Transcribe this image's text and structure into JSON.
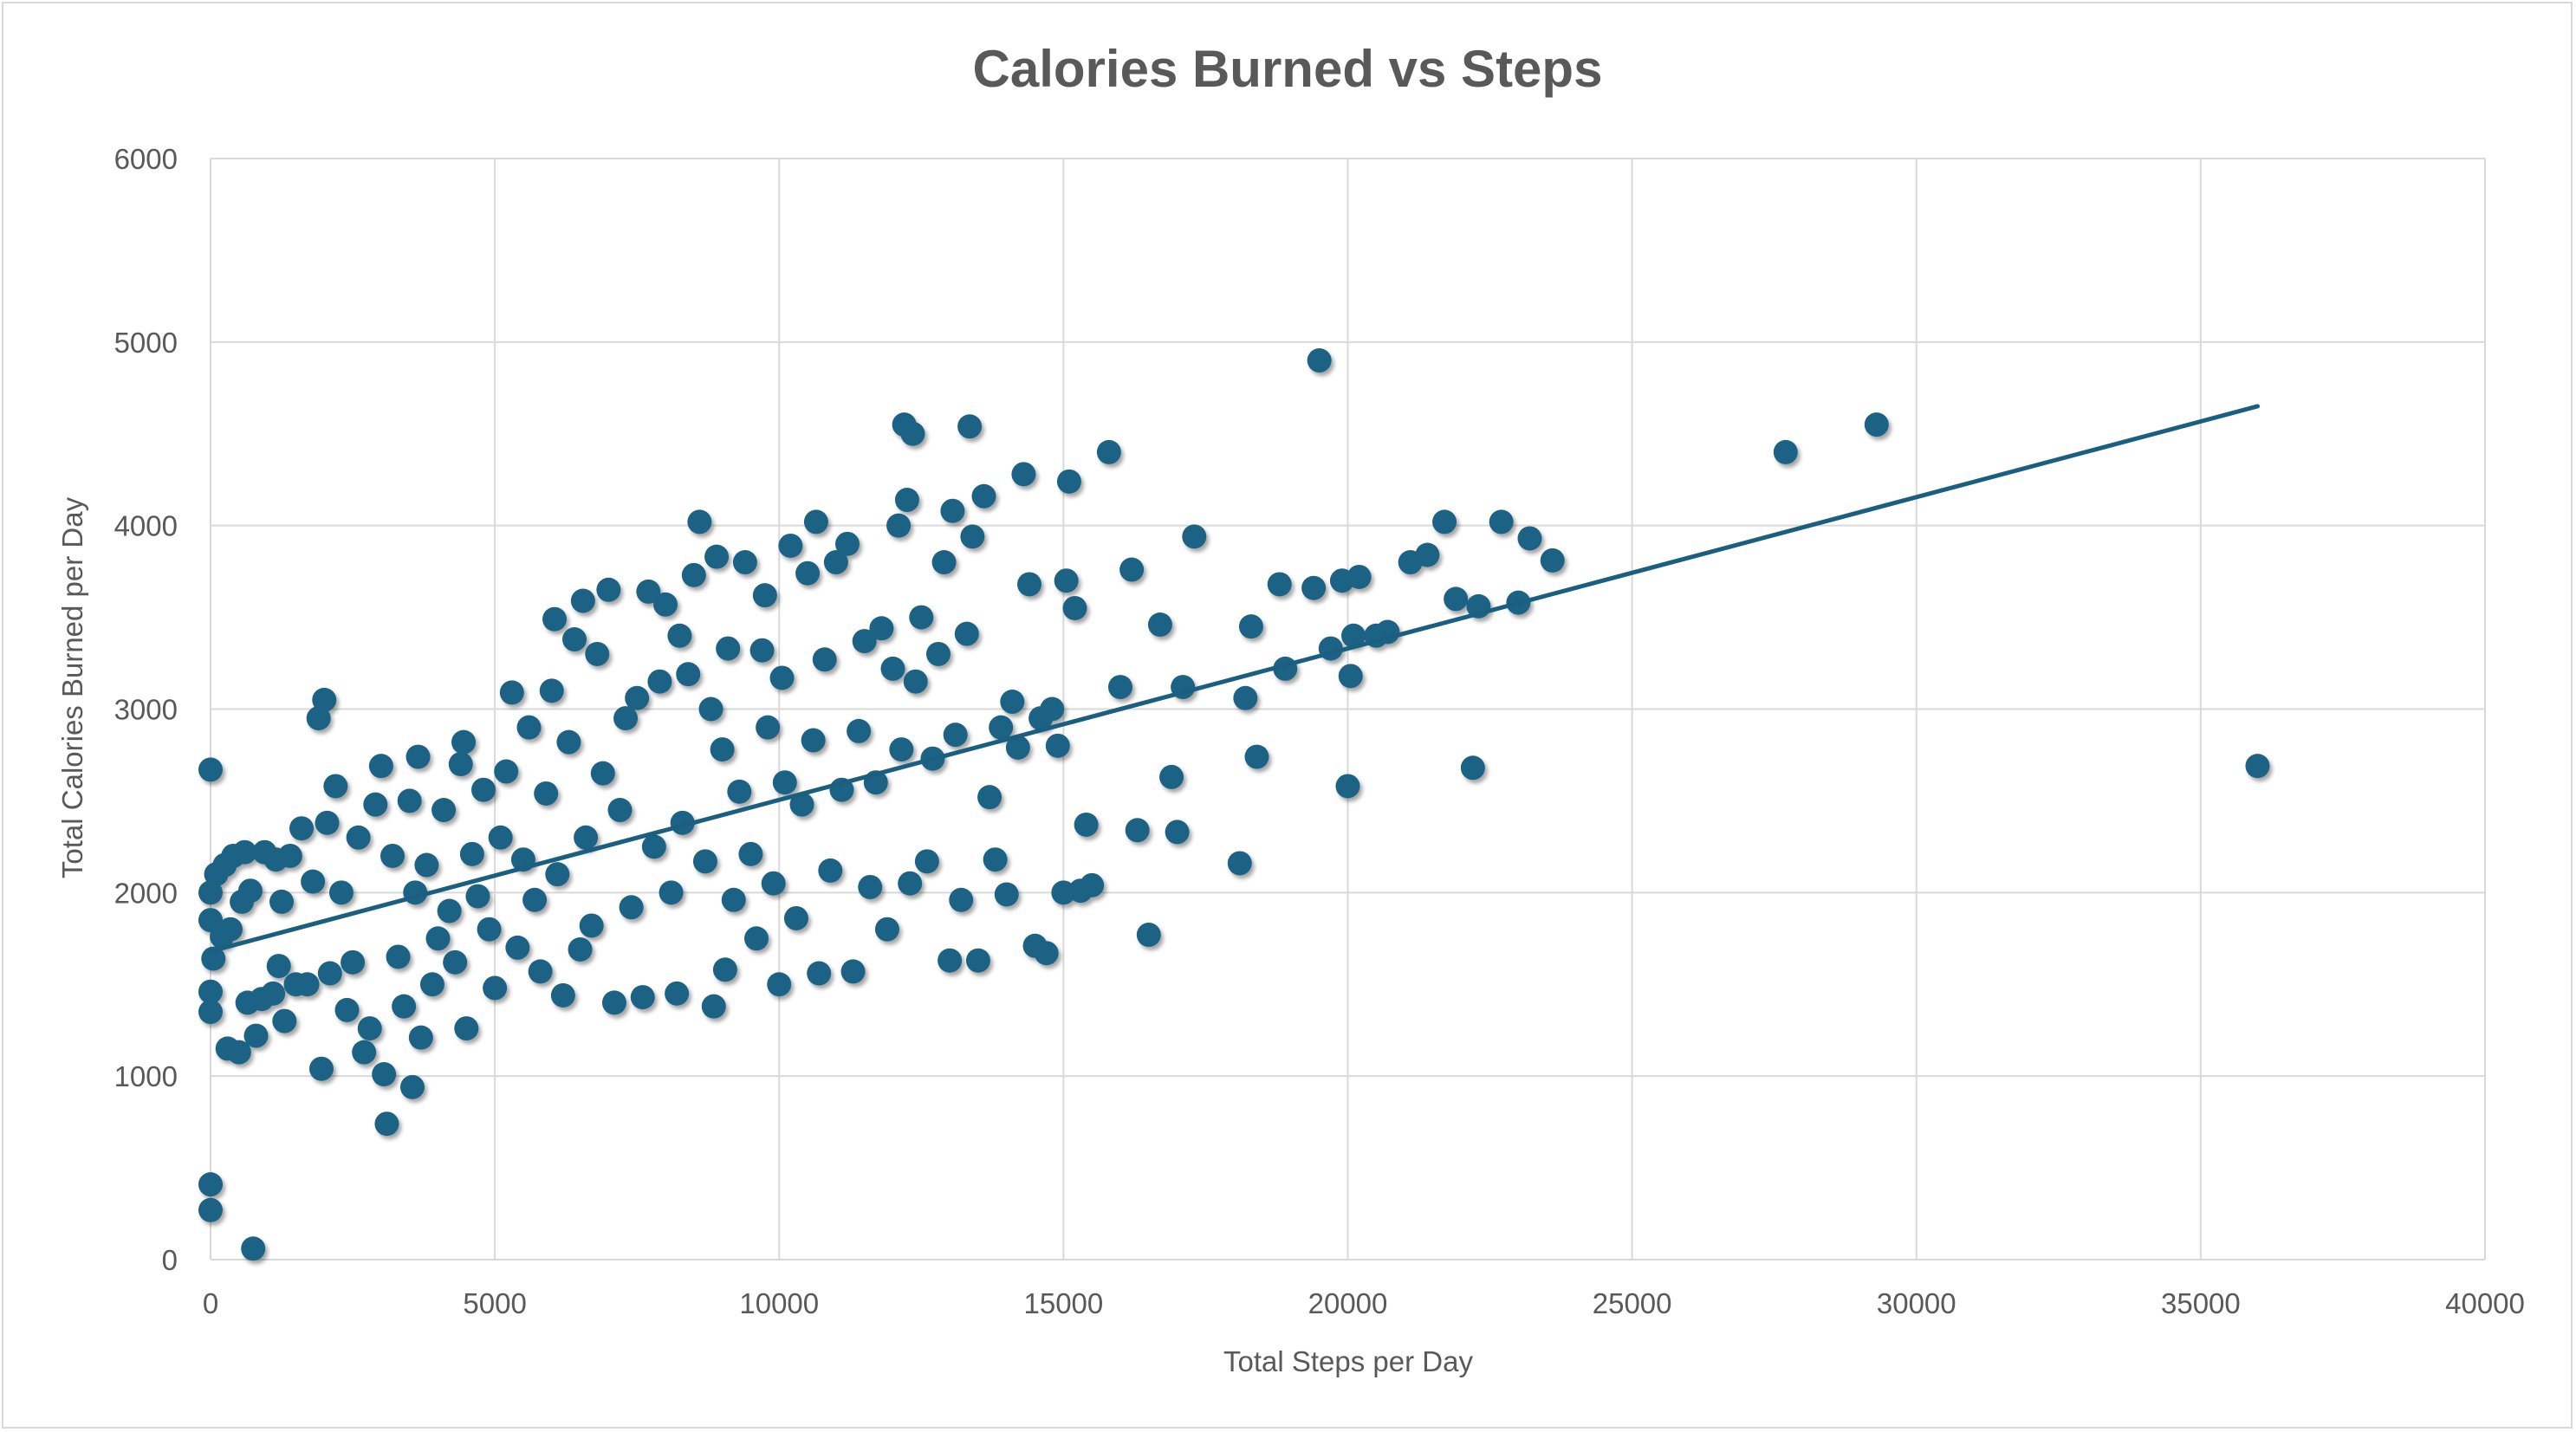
{
  "chart_data": {
    "type": "scatter",
    "title": "Calories Burned vs Steps",
    "xlabel": "Total Steps per Day",
    "ylabel": "Total Calories Burned per Day",
    "xlim": [
      0,
      40000
    ],
    "ylim": [
      0,
      6000
    ],
    "x_ticks": [
      0,
      5000,
      10000,
      15000,
      20000,
      25000,
      30000,
      35000,
      40000
    ],
    "y_ticks": [
      0,
      1000,
      2000,
      3000,
      4000,
      5000,
      6000
    ],
    "x_tick_labels": [
      "0",
      "5000",
      "10000",
      "15000",
      "20000",
      "25000",
      "30000",
      "35000",
      "40000"
    ],
    "y_tick_labels": [
      "0",
      "1000",
      "2000",
      "3000",
      "4000",
      "5000",
      "6000"
    ],
    "grid": true,
    "legend": "none",
    "colors": {
      "marker": "#1f6285",
      "trendline": "#1a5f80",
      "grid": "#d9d9d9",
      "text": "#595959"
    },
    "trendline": {
      "type": "linear",
      "x": [
        0,
        36000
      ],
      "y": [
        1680,
        4650
      ]
    },
    "series": [
      {
        "name": "Calories",
        "points": [
          [
            0,
            2670
          ],
          [
            0,
            410
          ],
          [
            0,
            270
          ],
          [
            0,
            1350
          ],
          [
            0,
            1460
          ],
          [
            0,
            1850
          ],
          [
            0,
            2000
          ],
          [
            50,
            1640
          ],
          [
            100,
            2100
          ],
          [
            200,
            1760
          ],
          [
            250,
            2150
          ],
          [
            300,
            1150
          ],
          [
            350,
            1800
          ],
          [
            400,
            2200
          ],
          [
            500,
            1130
          ],
          [
            550,
            1950
          ],
          [
            600,
            2220
          ],
          [
            650,
            1400
          ],
          [
            700,
            2010
          ],
          [
            750,
            60
          ],
          [
            800,
            1220
          ],
          [
            900,
            1420
          ],
          [
            950,
            2220
          ],
          [
            1100,
            1450
          ],
          [
            1150,
            2180
          ],
          [
            1200,
            1600
          ],
          [
            1250,
            1950
          ],
          [
            1300,
            1300
          ],
          [
            1400,
            2200
          ],
          [
            1500,
            1500
          ],
          [
            1600,
            2350
          ],
          [
            1700,
            1500
          ],
          [
            1800,
            2060
          ],
          [
            1900,
            2950
          ],
          [
            1950,
            1040
          ],
          [
            2000,
            3050
          ],
          [
            2050,
            2380
          ],
          [
            2100,
            1560
          ],
          [
            2200,
            2580
          ],
          [
            2300,
            2000
          ],
          [
            2400,
            1360
          ],
          [
            2500,
            1620
          ],
          [
            2600,
            2300
          ],
          [
            2700,
            1130
          ],
          [
            2800,
            1260
          ],
          [
            2900,
            2480
          ],
          [
            3000,
            2690
          ],
          [
            3050,
            1010
          ],
          [
            3100,
            740
          ],
          [
            3200,
            2200
          ],
          [
            3300,
            1650
          ],
          [
            3400,
            1380
          ],
          [
            3500,
            2500
          ],
          [
            3550,
            940
          ],
          [
            3600,
            2000
          ],
          [
            3650,
            2740
          ],
          [
            3700,
            1210
          ],
          [
            3800,
            2150
          ],
          [
            3900,
            1500
          ],
          [
            4000,
            1750
          ],
          [
            4100,
            2450
          ],
          [
            4200,
            1900
          ],
          [
            4300,
            1620
          ],
          [
            4400,
            2700
          ],
          [
            4450,
            2820
          ],
          [
            4500,
            1260
          ],
          [
            4600,
            2210
          ],
          [
            4700,
            1980
          ],
          [
            4800,
            2560
          ],
          [
            4900,
            1800
          ],
          [
            5000,
            1480
          ],
          [
            5100,
            2300
          ],
          [
            5200,
            2660
          ],
          [
            5300,
            3090
          ],
          [
            5400,
            1700
          ],
          [
            5500,
            2180
          ],
          [
            5600,
            2900
          ],
          [
            5700,
            1960
          ],
          [
            5800,
            1570
          ],
          [
            5900,
            2540
          ],
          [
            6000,
            3100
          ],
          [
            6050,
            3490
          ],
          [
            6100,
            2100
          ],
          [
            6200,
            1440
          ],
          [
            6300,
            2820
          ],
          [
            6400,
            3380
          ],
          [
            6500,
            1690
          ],
          [
            6550,
            3590
          ],
          [
            6600,
            2300
          ],
          [
            6700,
            1820
          ],
          [
            6800,
            3300
          ],
          [
            6900,
            2650
          ],
          [
            7000,
            3650
          ],
          [
            7100,
            1400
          ],
          [
            7200,
            2450
          ],
          [
            7300,
            2950
          ],
          [
            7400,
            1920
          ],
          [
            7500,
            3060
          ],
          [
            7600,
            1430
          ],
          [
            7700,
            3640
          ],
          [
            7800,
            2250
          ],
          [
            7900,
            3150
          ],
          [
            8000,
            3570
          ],
          [
            8100,
            2000
          ],
          [
            8200,
            1450
          ],
          [
            8250,
            3400
          ],
          [
            8300,
            2380
          ],
          [
            8400,
            3190
          ],
          [
            8500,
            3730
          ],
          [
            8600,
            4020
          ],
          [
            8700,
            2170
          ],
          [
            8800,
            3000
          ],
          [
            8850,
            1380
          ],
          [
            8900,
            3830
          ],
          [
            9000,
            2780
          ],
          [
            9050,
            1580
          ],
          [
            9100,
            3330
          ],
          [
            9200,
            1960
          ],
          [
            9300,
            2550
          ],
          [
            9400,
            3800
          ],
          [
            9500,
            2210
          ],
          [
            9600,
            1750
          ],
          [
            9700,
            3320
          ],
          [
            9750,
            3620
          ],
          [
            9800,
            2900
          ],
          [
            9900,
            2050
          ],
          [
            10000,
            1500
          ],
          [
            10050,
            3170
          ],
          [
            10100,
            2600
          ],
          [
            10200,
            3890
          ],
          [
            10300,
            1860
          ],
          [
            10400,
            2480
          ],
          [
            10500,
            3740
          ],
          [
            10600,
            2830
          ],
          [
            10650,
            4020
          ],
          [
            10700,
            1560
          ],
          [
            10800,
            3270
          ],
          [
            10900,
            2120
          ],
          [
            11000,
            3800
          ],
          [
            11100,
            2560
          ],
          [
            11200,
            3900
          ],
          [
            11300,
            1570
          ],
          [
            11400,
            2880
          ],
          [
            11500,
            3370
          ],
          [
            11600,
            2030
          ],
          [
            11700,
            2600
          ],
          [
            11800,
            3440
          ],
          [
            11900,
            1800
          ],
          [
            12000,
            3220
          ],
          [
            12100,
            4000
          ],
          [
            12150,
            2780
          ],
          [
            12200,
            4550
          ],
          [
            12250,
            4140
          ],
          [
            12300,
            2050
          ],
          [
            12350,
            4500
          ],
          [
            12400,
            3150
          ],
          [
            12500,
            3500
          ],
          [
            12600,
            2170
          ],
          [
            12700,
            2730
          ],
          [
            12800,
            3300
          ],
          [
            12900,
            3800
          ],
          [
            13000,
            1630
          ],
          [
            13050,
            4080
          ],
          [
            13100,
            2860
          ],
          [
            13200,
            1960
          ],
          [
            13300,
            3410
          ],
          [
            13350,
            4540
          ],
          [
            13400,
            3940
          ],
          [
            13500,
            1630
          ],
          [
            13600,
            4160
          ],
          [
            13700,
            2520
          ],
          [
            13800,
            2180
          ],
          [
            13900,
            2900
          ],
          [
            14000,
            1990
          ],
          [
            14100,
            3040
          ],
          [
            14200,
            2790
          ],
          [
            14300,
            4280
          ],
          [
            14400,
            3680
          ],
          [
            14500,
            1710
          ],
          [
            14600,
            2950
          ],
          [
            14700,
            1670
          ],
          [
            14800,
            3000
          ],
          [
            14900,
            2800
          ],
          [
            15000,
            2000
          ],
          [
            15050,
            3700
          ],
          [
            15100,
            4240
          ],
          [
            15200,
            3550
          ],
          [
            15300,
            2010
          ],
          [
            15400,
            2370
          ],
          [
            15500,
            2040
          ],
          [
            15800,
            4400
          ],
          [
            16000,
            3120
          ],
          [
            16200,
            3760
          ],
          [
            16300,
            2340
          ],
          [
            16500,
            1770
          ],
          [
            16700,
            3460
          ],
          [
            16900,
            2630
          ],
          [
            17000,
            2330
          ],
          [
            17100,
            3120
          ],
          [
            17300,
            3940
          ],
          [
            18100,
            2160
          ],
          [
            18200,
            3060
          ],
          [
            18300,
            3450
          ],
          [
            18400,
            2740
          ],
          [
            18800,
            3680
          ],
          [
            18900,
            3220
          ],
          [
            19400,
            3660
          ],
          [
            19500,
            4900
          ],
          [
            19700,
            3330
          ],
          [
            19900,
            3700
          ],
          [
            20000,
            2580
          ],
          [
            20050,
            3180
          ],
          [
            20100,
            3400
          ],
          [
            20200,
            3720
          ],
          [
            20500,
            3400
          ],
          [
            20700,
            3420
          ],
          [
            21100,
            3800
          ],
          [
            21400,
            3840
          ],
          [
            21700,
            4020
          ],
          [
            21900,
            3600
          ],
          [
            22200,
            2680
          ],
          [
            22300,
            3560
          ],
          [
            22700,
            4020
          ],
          [
            23000,
            3580
          ],
          [
            23200,
            3930
          ],
          [
            23600,
            3810
          ],
          [
            27700,
            4400
          ],
          [
            29300,
            4550
          ],
          [
            36000,
            2690
          ]
        ]
      }
    ]
  }
}
